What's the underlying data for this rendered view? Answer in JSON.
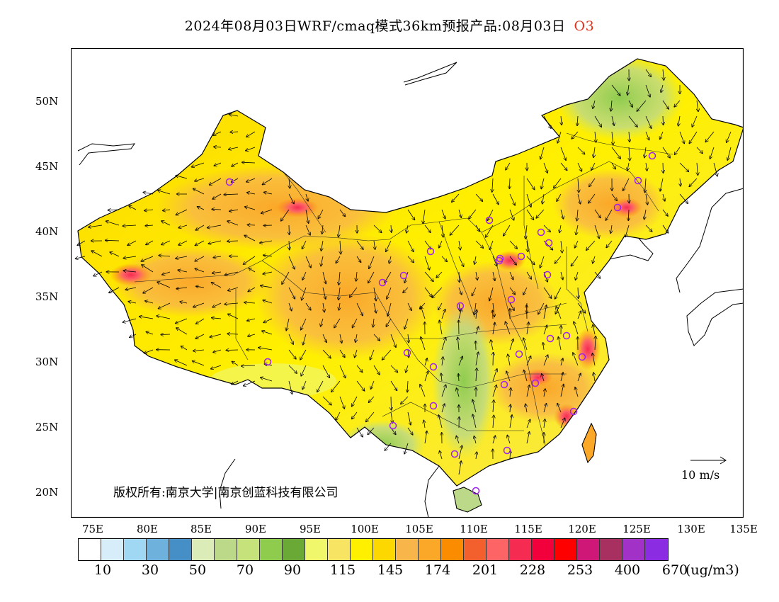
{
  "title": {
    "text": "2024年08月03日WRF/cmaq模式36km预报产品:08月03日",
    "pollutant": "O3"
  },
  "map": {
    "lat_labels": [
      "50N",
      "45N",
      "40N",
      "35N",
      "30N",
      "25N",
      "20N"
    ],
    "lon_labels": [
      "75E",
      "80E",
      "85E",
      "90E",
      "95E",
      "100E",
      "105E",
      "110E",
      "115E",
      "120E",
      "125E",
      "130E",
      "135E"
    ],
    "copyright": "版权所有:南京大学|南京创蓝科技有限公司",
    "wind_scale": "10 m/s",
    "hotspots": [
      "Tarim basin west",
      "Turpan region",
      "Beijing-Tianjin-Hebei",
      "Shenyang",
      "Yangtze River Delta",
      "Jiangxi",
      "Taiwan"
    ]
  },
  "legend": {
    "colors": [
      "#ffffff",
      "#d7eefa",
      "#a0d8f4",
      "#6db1dc",
      "#468ec6",
      "#dcecb8",
      "#bcd98a",
      "#c6e27b",
      "#8fcc4e",
      "#6aa936",
      "#f0f76a",
      "#f6e462",
      "#fff000",
      "#fcd800",
      "#f8b54a",
      "#fba828",
      "#fb8c00",
      "#f3602d",
      "#fd6466",
      "#f62b52",
      "#f2003c",
      "#ff0000",
      "#cf1778",
      "#a73060",
      "#a231c8",
      "#8b2be2"
    ],
    "values": [
      "10",
      "30",
      "50",
      "70",
      "90",
      "115",
      "145",
      "174",
      "201",
      "228",
      "253",
      "400",
      "670"
    ],
    "unit": "(ug/m3)"
  }
}
